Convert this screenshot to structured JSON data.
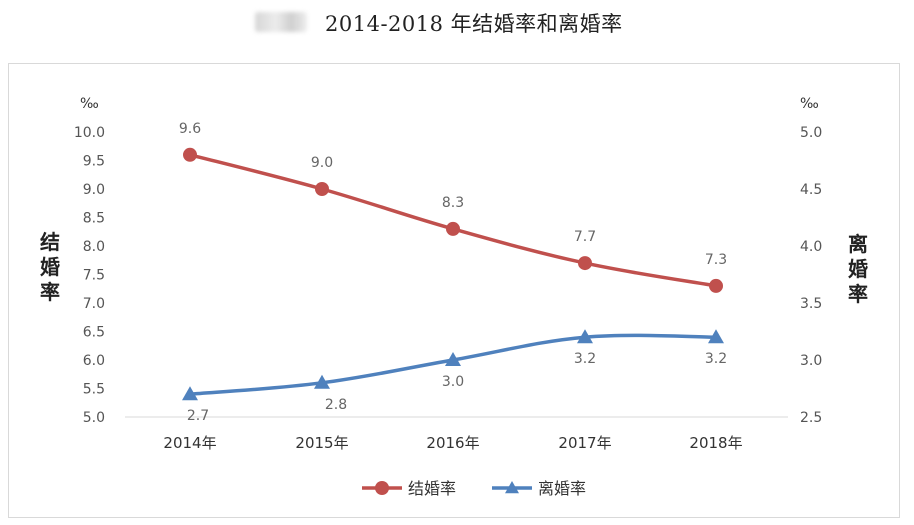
{
  "header": {
    "title": "2014-2018 年结婚率和离婚率"
  },
  "chart_data": {
    "type": "line",
    "categories": [
      "2014年",
      "2015年",
      "2016年",
      "2017年",
      "2018年"
    ],
    "left_axis": {
      "title": "结婚率",
      "unit": "‰",
      "ylim": [
        5.0,
        10.0
      ],
      "ticks": [
        "5.0",
        "5.5",
        "6.0",
        "6.5",
        "7.0",
        "7.5",
        "8.0",
        "8.5",
        "9.0",
        "9.5",
        "10.0"
      ]
    },
    "right_axis": {
      "title": "离婚率",
      "unit": "‰",
      "ylim": [
        2.5,
        5.0
      ],
      "ticks": [
        "2.5",
        "3.0",
        "3.5",
        "4.0",
        "4.5",
        "5.0"
      ]
    },
    "series": [
      {
        "name": "结婚率",
        "axis": "left",
        "marker": "circle",
        "color": "#c0504d",
        "values": [
          9.6,
          9.0,
          8.3,
          7.7,
          7.3
        ],
        "labels": [
          "9.6",
          "9.0",
          "8.3",
          "7.7",
          "7.3"
        ]
      },
      {
        "name": "离婚率",
        "axis": "right",
        "marker": "triangle",
        "color": "#4f81bd",
        "values": [
          2.7,
          2.8,
          3.0,
          3.2,
          3.2
        ],
        "labels": [
          "2.7",
          "2.8",
          "3.0",
          "3.2",
          "3.2"
        ]
      }
    ],
    "grid": false,
    "legend": "bottom"
  }
}
